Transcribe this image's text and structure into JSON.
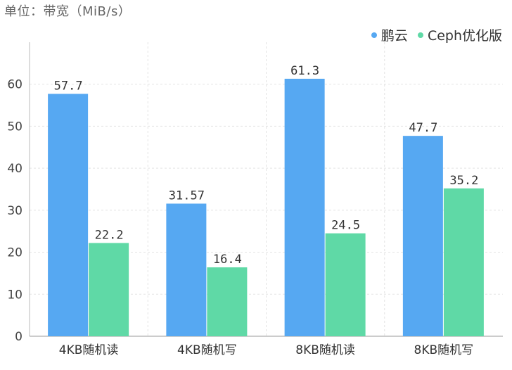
{
  "unit_label": "单位：带宽（MiB/s）",
  "chart_data": {
    "type": "bar",
    "categories": [
      "4KB随机读",
      "4KB随机写",
      "8KB随机读",
      "8KB随机写"
    ],
    "series": [
      {
        "name": "鹏云",
        "color": "#56a8f2",
        "values": [
          57.7,
          31.57,
          61.3,
          47.7
        ],
        "labels": [
          "57.7",
          "31.57",
          "61.3",
          "47.7"
        ]
      },
      {
        "name": "Ceph优化版",
        "color": "#5fd9a6",
        "values": [
          22.2,
          16.4,
          24.5,
          35.2
        ],
        "labels": [
          "22.2",
          "16.4",
          "24.5",
          "35.2"
        ]
      }
    ],
    "ylim": [
      0,
      70
    ],
    "yticks": [
      0,
      10,
      20,
      30,
      40,
      50,
      60
    ],
    "grid": true,
    "legend_position": "top-right"
  }
}
